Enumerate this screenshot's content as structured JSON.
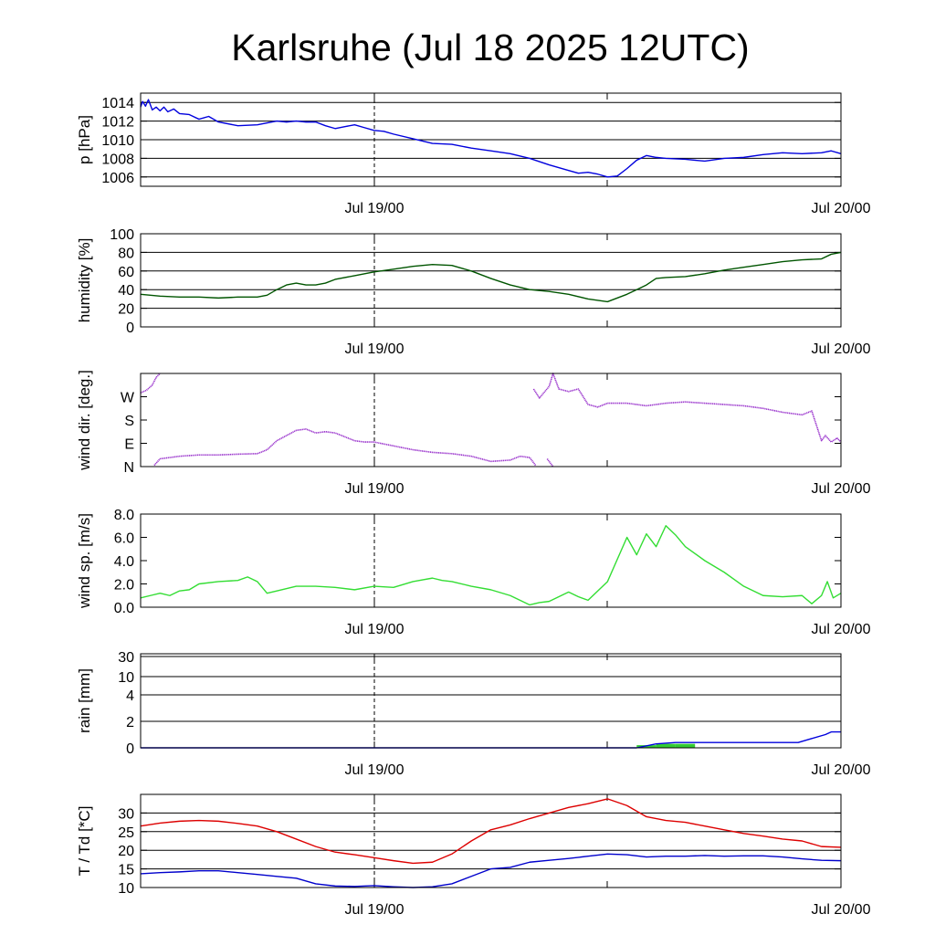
{
  "title": "Karlsruhe (Jul 18 2025 12UTC)",
  "x_tick_labels": [
    "Jul 19/00",
    "Jul 20/00"
  ],
  "colors": {
    "pressure": "#0000dd",
    "humidity": "#005500",
    "wind_dir": "#9933cc",
    "wind_speed": "#33dd33",
    "rain_total": "#0000dd",
    "rain_bar": "#33cc33",
    "temperature": "#dd0000",
    "dewpoint": "#0000cc"
  },
  "chart_data": [
    {
      "type": "line",
      "ylabel": "p [hPa]",
      "x_unit": "hours after Jul 18 12UTC",
      "xlim": [
        0,
        36
      ],
      "ylim": [
        1005,
        1015
      ],
      "yticks": [
        1006,
        1008,
        1010,
        1012,
        1014
      ],
      "ytick_labels": [
        "1006",
        "1008",
        "1010",
        "1012",
        "1014"
      ],
      "hgrid": true,
      "series": [
        {
          "color_key": "pressure",
          "x": [
            0,
            0.1,
            0.25,
            0.4,
            0.6,
            0.8,
            1,
            1.2,
            1.4,
            1.7,
            2,
            2.5,
            3,
            3.5,
            4,
            5,
            6,
            7,
            7.5,
            8,
            8.5,
            9,
            9.5,
            10,
            10.5,
            11,
            11.5,
            12,
            12.5,
            13,
            14,
            15,
            16,
            17,
            18,
            19,
            20,
            21,
            22,
            22.5,
            23,
            23.5,
            24,
            24.5,
            25,
            25.5,
            26,
            26.5,
            27,
            28,
            29,
            30,
            31,
            32,
            33,
            34,
            35,
            35.5,
            36
          ],
          "y": [
            1013.5,
            1014.1,
            1013.6,
            1014.3,
            1013.2,
            1013.5,
            1013.1,
            1013.5,
            1013.0,
            1013.3,
            1012.8,
            1012.7,
            1012.2,
            1012.5,
            1011.9,
            1011.5,
            1011.6,
            1012.0,
            1011.9,
            1012.0,
            1011.9,
            1011.9,
            1011.5,
            1011.2,
            1011.4,
            1011.6,
            1011.3,
            1011.0,
            1010.9,
            1010.6,
            1010.1,
            1009.6,
            1009.5,
            1009.1,
            1008.8,
            1008.5,
            1008.0,
            1007.3,
            1006.7,
            1006.4,
            1006.5,
            1006.3,
            1006.0,
            1006.1,
            1006.9,
            1007.8,
            1008.3,
            1008.1,
            1008.0,
            1007.9,
            1007.7,
            1008.0,
            1008.1,
            1008.4,
            1008.6,
            1008.5,
            1008.6,
            1008.8,
            1008.5
          ]
        }
      ]
    },
    {
      "type": "line",
      "ylabel": "humidity [%]",
      "x_unit": "hours after Jul 18 12UTC",
      "xlim": [
        0,
        36
      ],
      "ylim": [
        0,
        100
      ],
      "yticks": [
        0,
        20,
        40,
        60,
        80,
        100
      ],
      "ytick_labels": [
        "0",
        "20",
        "40",
        "60",
        "80",
        "100"
      ],
      "hgrid": true,
      "series": [
        {
          "color_key": "humidity",
          "x": [
            0,
            1,
            2,
            3,
            4,
            5,
            6,
            6.5,
            7,
            7.5,
            8,
            8.5,
            9,
            9.5,
            10,
            11,
            12,
            13,
            14,
            15,
            16,
            17,
            18,
            19,
            20,
            21,
            22,
            23,
            24,
            25,
            25.5,
            26,
            26.5,
            27,
            28,
            29,
            30,
            31,
            32,
            33,
            34,
            35,
            35.5,
            36
          ],
          "y": [
            35,
            33,
            32,
            32,
            31,
            32,
            32,
            34,
            40,
            45,
            47,
            45,
            45,
            47,
            51,
            55,
            59,
            62,
            65,
            67,
            66,
            60,
            52,
            45,
            40,
            38,
            35,
            30,
            27,
            35,
            40,
            45,
            52,
            53,
            54,
            57,
            61,
            64,
            67,
            70,
            72,
            73,
            78,
            80
          ]
        }
      ]
    },
    {
      "type": "scatter",
      "ylabel": "wind dir. [deg.]",
      "x_unit": "hours after Jul 18 12UTC",
      "xlim": [
        0,
        36
      ],
      "ylim": [
        0,
        360
      ],
      "yticks": [
        0,
        90,
        180,
        270
      ],
      "ytick_labels": [
        "N",
        "E",
        "S",
        "W"
      ],
      "hgrid": false,
      "series": [
        {
          "color_key": "wind_dir",
          "segments": [
            {
              "x": [
                0,
                0.3,
                0.6,
                0.8,
                1.0
              ],
              "y": [
                285,
                295,
                315,
                345,
                360
              ]
            },
            {
              "x": [
                0.7,
                1.0,
                2,
                3,
                4,
                5,
                6,
                6.5,
                7,
                8,
                8.5,
                9,
                9.5,
                10,
                10.5,
                11,
                11.5,
                12,
                13,
                14,
                15,
                16,
                17,
                18,
                19,
                19.5,
                20,
                20.3
              ],
              "y": [
                5,
                30,
                40,
                45,
                45,
                48,
                50,
                65,
                100,
                140,
                145,
                130,
                135,
                130,
                115,
                100,
                95,
                95,
                80,
                65,
                55,
                50,
                40,
                20,
                25,
                40,
                35,
                5
              ]
            },
            {
              "x": [
                20.2,
                20.5,
                21,
                21.2,
                21.5,
                22,
                22.5,
                23,
                23.5,
                24,
                25,
                26,
                27,
                28,
                29,
                30,
                31,
                32,
                33,
                34,
                34.5,
                35,
                35.2,
                35.5,
                35.8,
                36
              ],
              "y": [
                300,
                265,
                310,
                360,
                300,
                290,
                300,
                240,
                230,
                245,
                245,
                235,
                245,
                250,
                245,
                240,
                235,
                225,
                210,
                200,
                215,
                100,
                120,
                95,
                110,
                95
              ]
            },
            {
              "x": [
                20.9,
                21.1,
                21.2
              ],
              "y": [
                30,
                10,
                0
              ]
            }
          ]
        }
      ]
    },
    {
      "type": "line",
      "ylabel": "wind sp. [m/s]",
      "x_unit": "hours after Jul 18 12UTC",
      "xlim": [
        0,
        36
      ],
      "ylim": [
        0,
        8
      ],
      "yticks": [
        0,
        2,
        4,
        6,
        8
      ],
      "ytick_labels": [
        "0.0",
        "2.0",
        "4.0",
        "6.0",
        "8.0"
      ],
      "hgrid": false,
      "series": [
        {
          "color_key": "wind_speed",
          "x": [
            0,
            0.5,
            1,
            1.5,
            2,
            2.5,
            3,
            4,
            5,
            5.5,
            6,
            6.5,
            7,
            8,
            9,
            10,
            11,
            12,
            13,
            14,
            15,
            15.5,
            16,
            17,
            18,
            19,
            20,
            20.5,
            21,
            22,
            22.5,
            23,
            24,
            25,
            25.5,
            26,
            26.5,
            27,
            27.5,
            28,
            29,
            30,
            31,
            32,
            33,
            34,
            34.5,
            35,
            35.3,
            35.6,
            36
          ],
          "y": [
            0.8,
            1.0,
            1.2,
            1.0,
            1.4,
            1.5,
            2.0,
            2.2,
            2.3,
            2.6,
            2.2,
            1.2,
            1.4,
            1.8,
            1.8,
            1.7,
            1.5,
            1.8,
            1.7,
            2.2,
            2.5,
            2.3,
            2.2,
            1.8,
            1.5,
            1.0,
            0.2,
            0.4,
            0.5,
            1.3,
            0.9,
            0.6,
            2.2,
            6.0,
            4.5,
            6.3,
            5.2,
            7.0,
            6.2,
            5.2,
            4.0,
            3.0,
            1.8,
            1.0,
            0.9,
            1.0,
            0.3,
            1.0,
            2.2,
            0.8,
            1.2
          ]
        }
      ]
    },
    {
      "type": "area",
      "ylabel": "rain [mm]",
      "x_unit": "hours after Jul 18 12UTC",
      "xlim": [
        0,
        36
      ],
      "ylim": [
        0,
        30
      ],
      "yticks": [
        0,
        2,
        4,
        10,
        30
      ],
      "ytick_labels": [
        "0",
        "2",
        "4",
        "10",
        "30"
      ],
      "hgrid": true,
      "series": [
        {
          "color_key": "rain_bar",
          "kind": "bars",
          "bar_width_hours": 1,
          "x": [
            25.5,
            26.5,
            27.5
          ],
          "y": [
            0.2,
            0.3,
            0.3
          ]
        },
        {
          "color_key": "rain_total",
          "kind": "line",
          "x": [
            0,
            25.5,
            26.5,
            27.5,
            33.8,
            34.5,
            35.2,
            35.5,
            36
          ],
          "y": [
            0,
            0,
            0.3,
            0.4,
            0.4,
            0.7,
            1.0,
            1.2,
            1.2
          ]
        }
      ]
    },
    {
      "type": "line",
      "ylabel": "T / Td [*C]",
      "x_unit": "hours after Jul 18 12UTC",
      "xlim": [
        0,
        36
      ],
      "ylim": [
        10,
        35
      ],
      "yticks": [
        10,
        15,
        20,
        25,
        30
      ],
      "ytick_labels": [
        "10",
        "15",
        "20",
        "25",
        "30"
      ],
      "hgrid": true,
      "series": [
        {
          "color_key": "temperature",
          "x": [
            0,
            1,
            2,
            3,
            4,
            5,
            6,
            7,
            8,
            9,
            10,
            11,
            12,
            13,
            14,
            15,
            16,
            17,
            18,
            19,
            20,
            21,
            22,
            23,
            24,
            25,
            26,
            27,
            28,
            29,
            30,
            31,
            32,
            33,
            34,
            35,
            36
          ],
          "y": [
            26.5,
            27.3,
            27.8,
            28.0,
            27.8,
            27.2,
            26.5,
            25.0,
            23.0,
            21.0,
            19.5,
            18.8,
            18.0,
            17.2,
            16.5,
            16.8,
            19.0,
            22.5,
            25.5,
            26.8,
            28.5,
            30.0,
            31.5,
            32.5,
            33.8,
            32.0,
            29.0,
            28.0,
            27.5,
            26.5,
            25.5,
            24.5,
            23.8,
            23.0,
            22.5,
            21.0,
            20.8
          ]
        },
        {
          "color_key": "dewpoint",
          "x": [
            0,
            1,
            2,
            3,
            4,
            5,
            6,
            7,
            8,
            9,
            10,
            11,
            12,
            13,
            14,
            15,
            16,
            17,
            18,
            19,
            20,
            21,
            22,
            23,
            24,
            25,
            26,
            27,
            28,
            29,
            30,
            31,
            32,
            33,
            34,
            35,
            36
          ],
          "y": [
            13.7,
            14.0,
            14.2,
            14.5,
            14.5,
            14.0,
            13.5,
            13.0,
            12.5,
            11.0,
            10.4,
            10.3,
            10.5,
            10.2,
            10.0,
            10.2,
            11.0,
            13.0,
            15.0,
            15.4,
            16.8,
            17.3,
            17.8,
            18.4,
            19.0,
            18.8,
            18.2,
            18.4,
            18.4,
            18.6,
            18.4,
            18.5,
            18.5,
            18.2,
            17.7,
            17.3,
            17.2
          ]
        }
      ]
    }
  ]
}
